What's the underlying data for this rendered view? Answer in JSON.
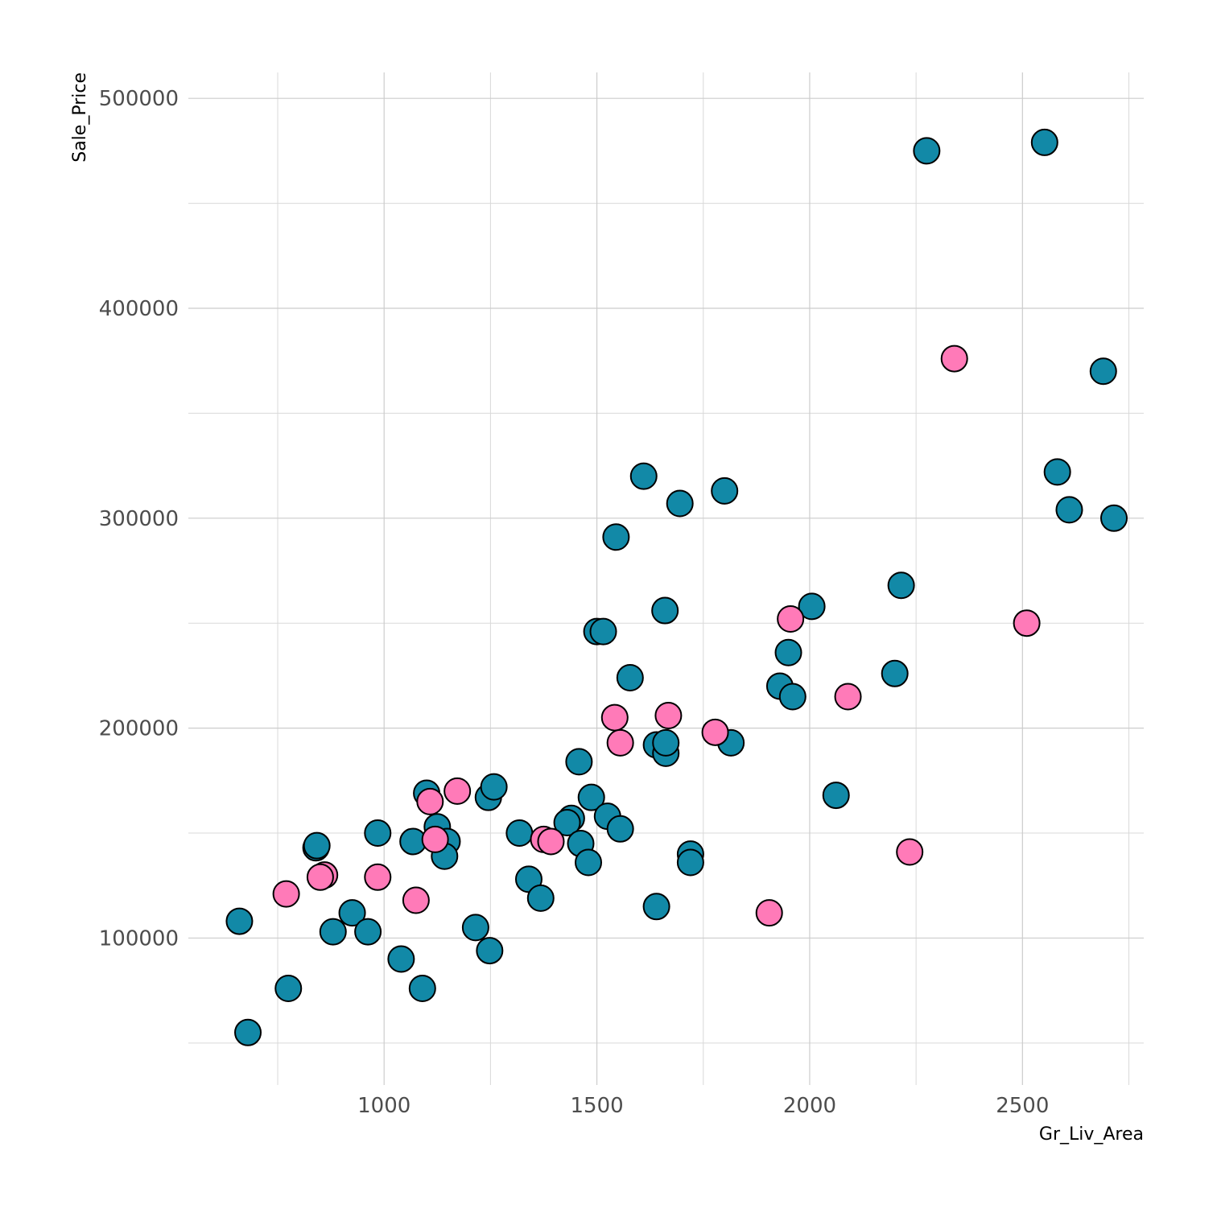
{
  "chart_data": {
    "type": "scatter",
    "title": "",
    "xlabel": "Gr_Liv_Area",
    "ylabel": "Sale_Price",
    "xlim": [
      540,
      2785
    ],
    "ylim": [
      30000,
      520000
    ],
    "x_ticks": [
      1000,
      1500,
      2000,
      2500
    ],
    "x_tick_labels": [
      "1000",
      "1500",
      "2000",
      "2500"
    ],
    "y_ticks": [
      100000,
      200000,
      300000,
      400000,
      500000
    ],
    "y_tick_labels": [
      "100000",
      "200000",
      "300000",
      "400000",
      "500000"
    ],
    "x_minor_ticks": [
      750,
      1250,
      1750,
      2250,
      2750
    ],
    "y_minor_ticks": [
      50000,
      150000,
      250000,
      350000,
      450000
    ],
    "grid": true,
    "legend": "none",
    "colors": {
      "teal": "#1289a7",
      "pink": "#ff7ab8",
      "outline": "#000000"
    },
    "series": [
      {
        "color": "#1289a7",
        "points": [
          [
            660,
            108000
          ],
          [
            680,
            55000
          ],
          [
            775,
            76000
          ],
          [
            840,
            143000
          ],
          [
            842,
            144000
          ],
          [
            880,
            103000
          ],
          [
            925,
            112000
          ],
          [
            962,
            103000
          ],
          [
            985,
            150000
          ],
          [
            1040,
            90000
          ],
          [
            1068,
            146000
          ],
          [
            1090,
            76000
          ],
          [
            1100,
            169000
          ],
          [
            1125,
            153000
          ],
          [
            1148,
            146000
          ],
          [
            1142,
            139000
          ],
          [
            1215,
            105000
          ],
          [
            1245,
            167000
          ],
          [
            1258,
            172000
          ],
          [
            1248,
            94000
          ],
          [
            1318,
            150000
          ],
          [
            1340,
            128000
          ],
          [
            1368,
            119000
          ],
          [
            1440,
            157000
          ],
          [
            1430,
            155000
          ],
          [
            1458,
            184000
          ],
          [
            1462,
            145000
          ],
          [
            1480,
            136000
          ],
          [
            1487,
            167000
          ],
          [
            1500,
            246000
          ],
          [
            1515,
            246000
          ],
          [
            1525,
            158000
          ],
          [
            1555,
            152000
          ],
          [
            1545,
            291000
          ],
          [
            1578,
            224000
          ],
          [
            1610,
            320000
          ],
          [
            1640,
            115000
          ],
          [
            1640,
            192000
          ],
          [
            1662,
            188000
          ],
          [
            1662,
            193000
          ],
          [
            1660,
            256000
          ],
          [
            1695,
            307000
          ],
          [
            1720,
            140000
          ],
          [
            1720,
            136000
          ],
          [
            1800,
            313000
          ],
          [
            1815,
            193000
          ],
          [
            1930,
            220000
          ],
          [
            1950,
            236000
          ],
          [
            1960,
            215000
          ],
          [
            2005,
            258000
          ],
          [
            2062,
            168000
          ],
          [
            2200,
            226000
          ],
          [
            2215,
            268000
          ],
          [
            2275,
            475000
          ],
          [
            2552,
            479000
          ],
          [
            2582,
            322000
          ],
          [
            2610,
            304000
          ],
          [
            2690,
            370000
          ],
          [
            2715,
            300000
          ]
        ]
      },
      {
        "color": "#ff7ab8",
        "points": [
          [
            770,
            121000
          ],
          [
            860,
            130000
          ],
          [
            850,
            129000
          ],
          [
            985,
            129000
          ],
          [
            1075,
            118000
          ],
          [
            1108,
            165000
          ],
          [
            1120,
            147000
          ],
          [
            1172,
            170000
          ],
          [
            1375,
            147000
          ],
          [
            1392,
            146000
          ],
          [
            1542,
            205000
          ],
          [
            1555,
            193000
          ],
          [
            1668,
            206000
          ],
          [
            1778,
            198000
          ],
          [
            1905,
            112000
          ],
          [
            1955,
            252000
          ],
          [
            2090,
            215000
          ],
          [
            2235,
            141000
          ],
          [
            2340,
            376000
          ],
          [
            2510,
            250000
          ]
        ]
      }
    ]
  }
}
